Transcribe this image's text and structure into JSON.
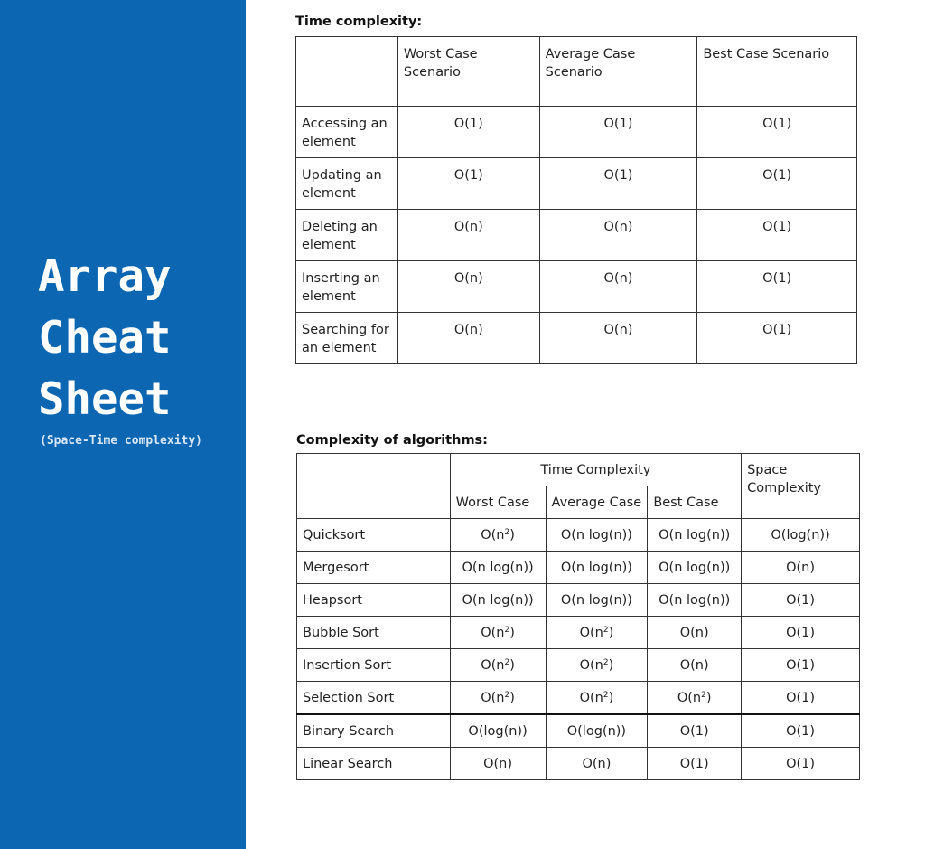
{
  "sidebar": {
    "title_lines": [
      "Array",
      "Cheat",
      "Sheet"
    ],
    "subtitle": "(Space-Time complexity)",
    "background": "#0c66b2"
  },
  "time_complexity": {
    "heading": "Time complexity:",
    "columns": [
      "",
      "Worst Case Scenario",
      "Average Case Scenario",
      "Best Case Scenario"
    ],
    "rows": [
      {
        "op": "Accessing an element",
        "worst": "O(1)",
        "average": "O(1)",
        "best": "O(1)"
      },
      {
        "op": "Updating an element",
        "worst": "O(1)",
        "average": "O(1)",
        "best": "O(1)"
      },
      {
        "op": "Deleting an element",
        "worst": "O(n)",
        "average": "O(n)",
        "best": "O(1)"
      },
      {
        "op": "Inserting an element",
        "worst": "O(n)",
        "average": "O(n)",
        "best": "O(1)"
      },
      {
        "op": "Searching for an element",
        "worst": "O(n)",
        "average": "O(n)",
        "best": "O(1)"
      }
    ]
  },
  "algorithms": {
    "heading": "Complexity of algorithms:",
    "group_header": "Time Complexity",
    "space_header": "Space Complexity",
    "sub_headers": [
      "Worst Case",
      "Average Case",
      "Best Case"
    ],
    "rows": [
      {
        "name": "Quicksort",
        "worst": "O(n²)",
        "average": "O(n log(n))",
        "best": "O(n log(n))",
        "space": "O(log(n))"
      },
      {
        "name": "Mergesort",
        "worst": "O(n log(n))",
        "average": "O(n log(n))",
        "best": "O(n log(n))",
        "space": "O(n)"
      },
      {
        "name": "Heapsort",
        "worst": "O(n log(n))",
        "average": "O(n log(n))",
        "best": "O(n log(n))",
        "space": "O(1)"
      },
      {
        "name": "Bubble Sort",
        "worst": "O(n²)",
        "average": "O(n²)",
        "best": "O(n)",
        "space": "O(1)"
      },
      {
        "name": "Insertion Sort",
        "worst": "O(n²)",
        "average": "O(n²)",
        "best": "O(n)",
        "space": "O(1)"
      },
      {
        "name": "Selection Sort",
        "worst": "O(n²)",
        "average": "O(n²)",
        "best": "O(n²)",
        "space": "O(1)"
      },
      {
        "name": "Binary Search",
        "worst": "O(log(n))",
        "average": "O(log(n))",
        "best": "O(1)",
        "space": "O(1)"
      },
      {
        "name": "Linear Search",
        "worst": "O(n)",
        "average": "O(n)",
        "best": "O(1)",
        "space": "O(1)"
      }
    ]
  }
}
